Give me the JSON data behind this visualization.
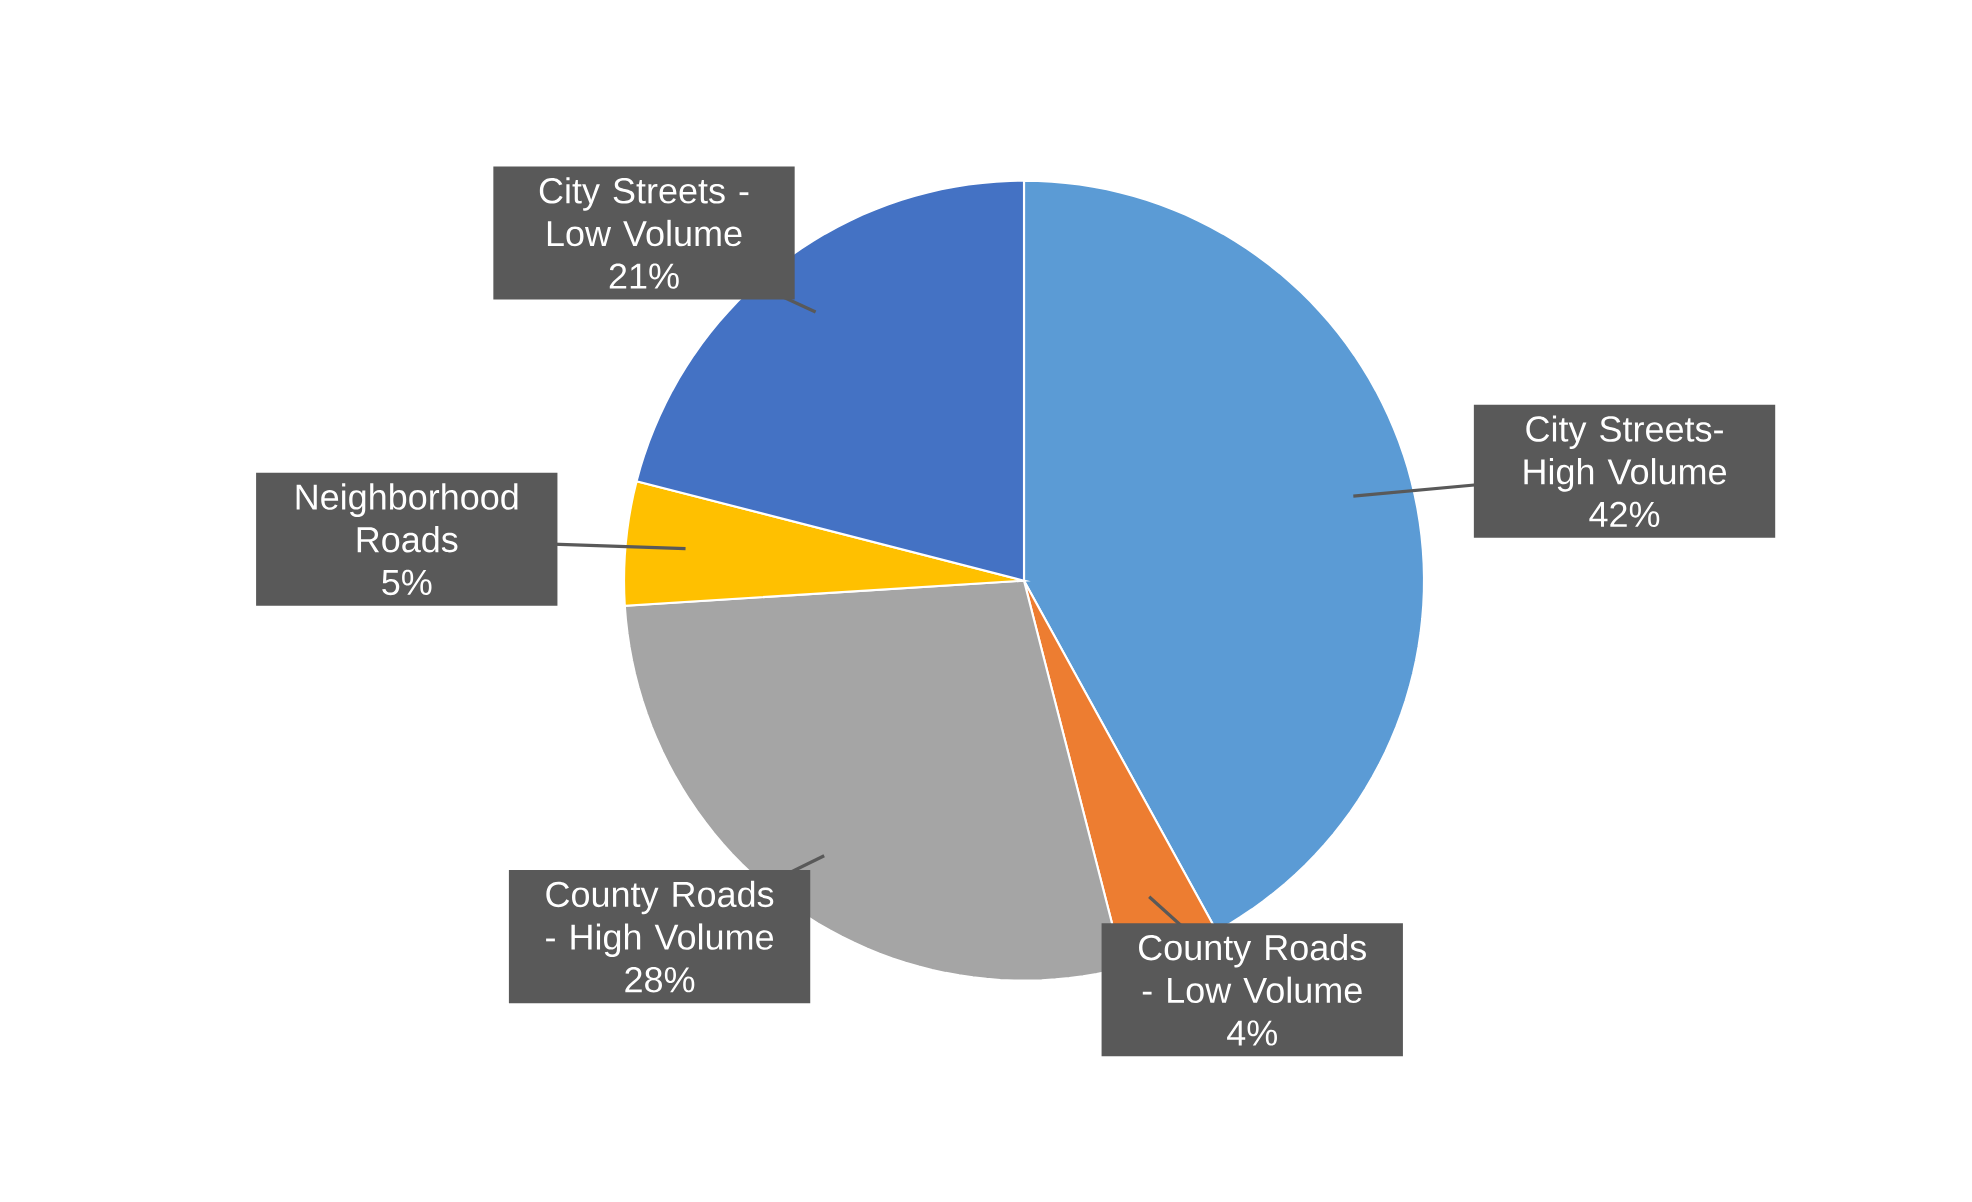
{
  "chart_data": {
    "type": "pie",
    "categories": [
      "City Streets-High Volume",
      "County Roads - Low Volume",
      "County Roads - High Volume",
      "Neighborhood Roads",
      "City Streets - Low Volume"
    ],
    "values": [
      42,
      4,
      28,
      5,
      21
    ],
    "value_labels": [
      "42%",
      "4%",
      "28%",
      "5%",
      "21%"
    ],
    "colors": [
      "#5b9bd5",
      "#ed7d31",
      "#a5a5a5",
      "#ffc000",
      "#4472c4"
    ]
  }
}
